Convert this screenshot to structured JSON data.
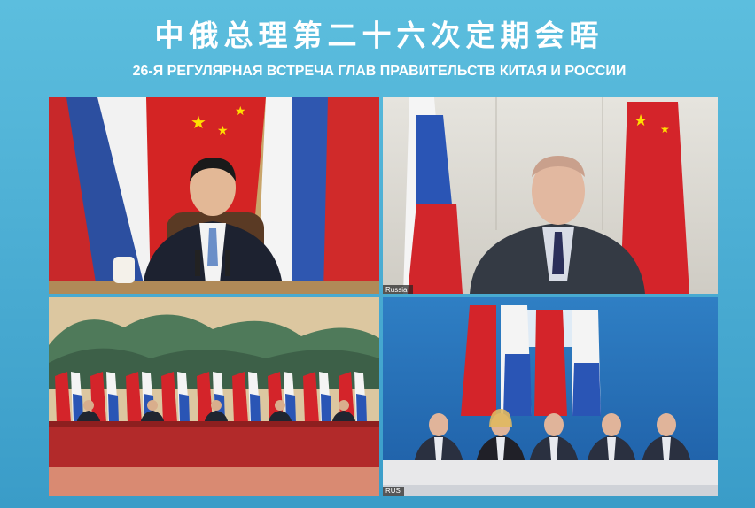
{
  "header": {
    "title": "中俄总理第二十六次定期会晤",
    "subtitle": "26-Я РЕГУЛЯРНАЯ ВСТРЕЧА ГЛАВ ПРАВИТЕЛЬСТВ КИТАЯ И РОССИИ"
  },
  "panels": [
    {
      "label": "Russia"
    },
    {
      "label": "RUS"
    }
  ]
}
